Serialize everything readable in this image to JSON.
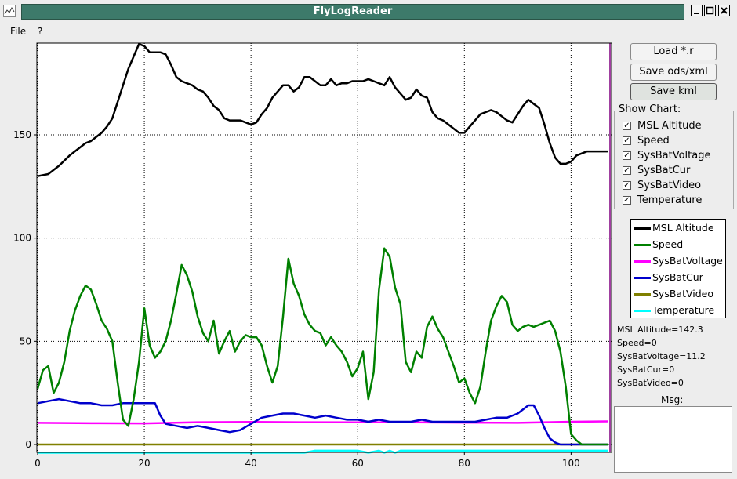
{
  "window": {
    "title": "FlyLogReader"
  },
  "menu": [
    "File",
    "?"
  ],
  "buttons": {
    "load": "Load *.r",
    "save_ods": "Save ods/xml",
    "save_kml": "Save kml"
  },
  "show_chart": {
    "label": "Show Chart:",
    "items": [
      {
        "label": "MSL Altitude",
        "checked": true
      },
      {
        "label": "Speed",
        "checked": true
      },
      {
        "label": "SysBatVoltage",
        "checked": true
      },
      {
        "label": "SysBatCur",
        "checked": true
      },
      {
        "label": "SysBatVideo",
        "checked": true
      },
      {
        "label": "Temperature",
        "checked": true
      }
    ]
  },
  "readouts": [
    "MSL Altitude=142.3",
    "Speed=0",
    "SysBatVoltage=11.2",
    "SysBatCur=0",
    "SysBatVideo=0"
  ],
  "msg": {
    "label": "Msg:"
  },
  "chart_data": {
    "type": "line",
    "xlim": [
      0,
      107
    ],
    "ylim": [
      -5,
      196
    ],
    "xticks": [
      0,
      20,
      40,
      60,
      80,
      100
    ],
    "yticks": [
      0,
      50,
      100,
      150
    ],
    "grid": true,
    "legend_position": "right",
    "series": [
      {
        "name": "MSL Altitude",
        "color": "#000000",
        "x": [
          0,
          2,
          4,
          6,
          8,
          9,
          10,
          12,
          13,
          14,
          15,
          16,
          17,
          18,
          19,
          20,
          21,
          22,
          23,
          24,
          25,
          26,
          27,
          28,
          29,
          30,
          31,
          32,
          33,
          34,
          35,
          36,
          37,
          38,
          39,
          40,
          41,
          42,
          43,
          44,
          45,
          46,
          47,
          48,
          49,
          50,
          51,
          52,
          53,
          54,
          55,
          56,
          57,
          58,
          59,
          60,
          61,
          62,
          63,
          64,
          65,
          66,
          67,
          68,
          69,
          70,
          71,
          72,
          73,
          74,
          75,
          76,
          77,
          78,
          79,
          80,
          81,
          82,
          83,
          84,
          85,
          86,
          87,
          88,
          89,
          90,
          91,
          92,
          93,
          94,
          95,
          96,
          97,
          98,
          99,
          100,
          101,
          102,
          103,
          104,
          105,
          106,
          107
        ],
        "y": [
          130,
          131,
          135,
          140,
          144,
          146,
          147,
          151,
          154,
          158,
          166,
          174,
          182,
          188,
          194,
          193,
          190,
          190,
          190,
          189,
          184,
          178,
          176,
          175,
          174,
          172,
          171,
          168,
          164,
          162,
          158,
          157,
          157,
          157,
          156,
          155,
          156,
          160,
          163,
          168,
          171,
          174,
          174,
          171,
          173,
          178,
          178,
          176,
          174,
          174,
          177,
          174,
          175,
          175,
          176,
          176,
          176,
          177,
          176,
          175,
          174,
          178,
          173,
          170,
          167,
          168,
          172,
          169,
          168,
          161,
          158,
          157,
          155,
          153,
          151,
          151,
          154,
          157,
          160,
          161,
          162,
          161,
          159,
          157,
          156,
          160,
          164,
          167,
          165,
          163,
          155,
          146,
          139,
          136,
          136,
          137,
          140,
          141,
          142,
          142,
          142,
          142,
          142
        ]
      },
      {
        "name": "Speed",
        "color": "#008000",
        "x": [
          0,
          1,
          2,
          3,
          4,
          5,
          6,
          7,
          8,
          9,
          10,
          11,
          12,
          13,
          14,
          15,
          16,
          17,
          18,
          19,
          20,
          21,
          22,
          23,
          24,
          25,
          26,
          27,
          28,
          29,
          30,
          31,
          32,
          33,
          34,
          35,
          36,
          37,
          38,
          39,
          40,
          41,
          42,
          43,
          44,
          45,
          46,
          47,
          48,
          49,
          50,
          51,
          52,
          53,
          54,
          55,
          56,
          57,
          58,
          59,
          60,
          61,
          62,
          63,
          64,
          65,
          66,
          67,
          68,
          69,
          70,
          71,
          72,
          73,
          74,
          75,
          76,
          77,
          78,
          79,
          80,
          81,
          82,
          83,
          84,
          85,
          86,
          87,
          88,
          89,
          90,
          91,
          92,
          93,
          94,
          95,
          96,
          97,
          98,
          99,
          100,
          101,
          102,
          103,
          104,
          105,
          106,
          107
        ],
        "y": [
          27,
          36,
          38,
          25,
          30,
          40,
          55,
          65,
          72,
          77,
          75,
          68,
          60,
          56,
          50,
          30,
          12,
          9,
          22,
          40,
          66,
          48,
          42,
          45,
          50,
          60,
          73,
          87,
          82,
          74,
          62,
          54,
          50,
          60,
          44,
          50,
          55,
          45,
          50,
          53,
          52,
          52,
          48,
          38,
          30,
          38,
          62,
          90,
          78,
          72,
          63,
          58,
          55,
          54,
          48,
          52,
          48,
          45,
          40,
          33,
          37,
          45,
          22,
          35,
          75,
          95,
          91,
          76,
          68,
          40,
          35,
          45,
          42,
          57,
          62,
          56,
          52,
          45,
          38,
          30,
          32,
          25,
          20,
          28,
          45,
          60,
          67,
          72,
          69,
          58,
          55,
          57,
          58,
          57,
          58,
          59,
          60,
          55,
          45,
          28,
          5,
          2,
          0,
          0,
          0,
          0,
          0,
          0
        ]
      },
      {
        "name": "SysBatVoltage",
        "color": "#ff00ff",
        "x": [
          0,
          10,
          20,
          30,
          40,
          50,
          60,
          70,
          80,
          90,
          100,
          107
        ],
        "y": [
          10.5,
          10.3,
          10.2,
          10.8,
          10.9,
          10.8,
          10.7,
          10.7,
          10.6,
          10.5,
          11.0,
          11.2
        ]
      },
      {
        "name": "SysBatCur",
        "color": "#0000cc",
        "x": [
          0,
          2,
          4,
          6,
          8,
          10,
          12,
          14,
          16,
          18,
          20,
          22,
          23,
          24,
          26,
          28,
          30,
          32,
          34,
          36,
          38,
          40,
          42,
          44,
          46,
          48,
          50,
          52,
          54,
          56,
          58,
          60,
          62,
          64,
          66,
          68,
          70,
          72,
          74,
          76,
          78,
          80,
          82,
          84,
          86,
          88,
          90,
          92,
          93,
          94,
          95,
          96,
          97,
          98,
          99,
          100,
          101,
          102,
          103,
          104,
          105,
          106,
          107
        ],
        "y": [
          20,
          21,
          22,
          21,
          20,
          20,
          19,
          19,
          20,
          20,
          20,
          20,
          14,
          10,
          9,
          8,
          9,
          8,
          7,
          6,
          7,
          10,
          13,
          14,
          15,
          15,
          14,
          13,
          14,
          13,
          12,
          12,
          11,
          12,
          11,
          11,
          11,
          12,
          11,
          11,
          11,
          11,
          11,
          12,
          13,
          13,
          15,
          19,
          19,
          14,
          8,
          3,
          1,
          0,
          0,
          0,
          0,
          0,
          0,
          0,
          0,
          0,
          0
        ]
      },
      {
        "name": "SysBatVideo",
        "color": "#808000",
        "x": [
          0,
          107
        ],
        "y": [
          0,
          0
        ]
      },
      {
        "name": "Temperature",
        "color": "#00ffff",
        "x": [
          0,
          50,
          52,
          60,
          62,
          64,
          65,
          66,
          67,
          68,
          69,
          70,
          107
        ],
        "y": [
          -4,
          -4,
          -3,
          -3,
          -4,
          -3,
          -4,
          -3,
          -4,
          -3,
          -3,
          -3,
          -3
        ]
      }
    ]
  }
}
